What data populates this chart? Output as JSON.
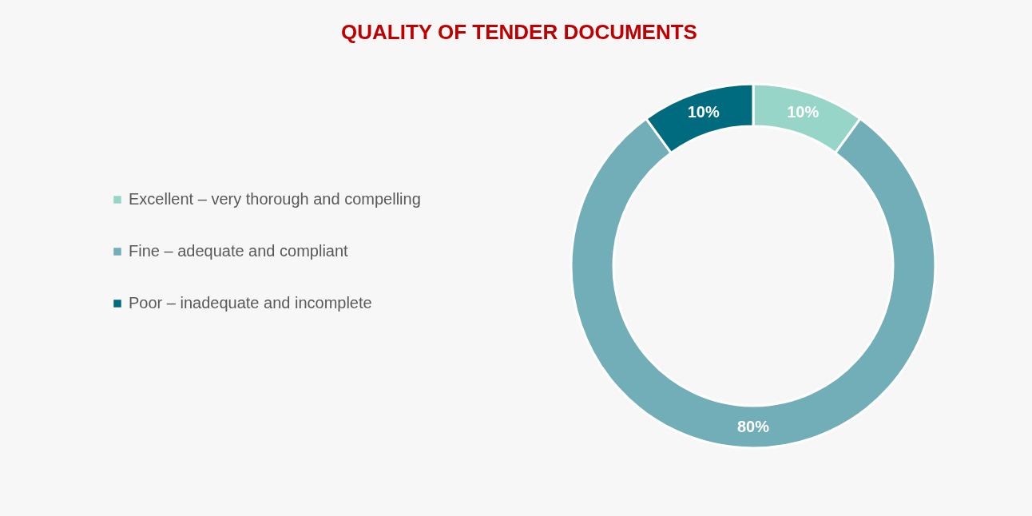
{
  "chart_data": {
    "type": "donut",
    "title": "QUALITY OF TENDER DOCUMENTS",
    "categories": [
      "Excellent – very thorough and compelling",
      "Fine – adequate and compliant",
      "Poor – inadequate and incomplete"
    ],
    "values": [
      10,
      80,
      10
    ],
    "colors": [
      "#97d5c9",
      "#72aeb8",
      "#006a7f"
    ],
    "value_labels": [
      "10%",
      "80%",
      "10%"
    ],
    "legend": "left"
  }
}
